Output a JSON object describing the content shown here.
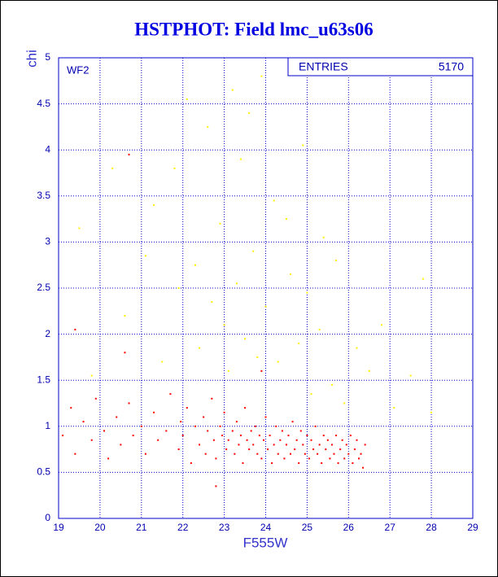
{
  "chart_data": {
    "type": "scatter",
    "title": "HSTPHOT: Field lmc_u63s06",
    "x_label": "F555W",
    "y_label": "chi",
    "annotation": "WF2",
    "stats": {
      "label": "ENTRIES",
      "value": 5170
    },
    "xlim": [
      19,
      29
    ],
    "xticks": [
      19,
      20,
      21,
      22,
      23,
      24,
      25,
      26,
      27,
      28,
      29
    ],
    "ylim": [
      0,
      5
    ],
    "yticks": [
      0,
      0.5,
      1,
      1.5,
      2,
      2.5,
      3,
      3.5,
      4,
      4.5,
      5
    ],
    "grid": true,
    "series": [
      {
        "color": "#ffee00",
        "x": [
          19.5,
          19.8,
          20.3,
          20.6,
          21.1,
          21.3,
          21.5,
          21.8,
          21.9,
          22.1,
          22.3,
          22.4,
          22.6,
          22.7,
          22.9,
          23.0,
          23.1,
          23.2,
          23.3,
          23.4,
          23.5,
          23.6,
          23.7,
          23.8,
          23.9,
          24.0,
          24.2,
          24.3,
          24.5,
          24.6,
          24.8,
          24.9,
          25.0,
          25.1,
          25.3,
          25.4,
          25.6,
          25.7,
          25.9,
          26.2,
          26.5,
          26.8,
          27.1,
          27.5,
          27.8,
          28.0
        ],
        "values": [
          3.15,
          1.55,
          3.8,
          2.2,
          2.85,
          3.4,
          1.7,
          3.8,
          2.5,
          4.55,
          2.75,
          1.85,
          4.25,
          2.35,
          3.2,
          2.1,
          1.6,
          4.65,
          2.55,
          3.9,
          1.95,
          4.4,
          2.9,
          1.75,
          4.8,
          2.3,
          3.45,
          1.7,
          3.25,
          2.65,
          1.9,
          4.05,
          2.45,
          1.35,
          2.05,
          3.05,
          1.45,
          2.8,
          1.25,
          1.85,
          1.6,
          2.1,
          1.2,
          1.55,
          2.6,
          1.15
        ]
      },
      {
        "color": "#ff0000",
        "x": [
          19.1,
          19.3,
          19.4,
          19.6,
          19.8,
          19.9,
          20.1,
          20.2,
          20.4,
          20.5,
          20.7,
          20.8,
          21.0,
          21.1,
          21.3,
          21.4,
          21.6,
          21.7,
          21.9,
          21.95,
          22.0,
          22.1,
          22.2,
          22.3,
          22.4,
          22.5,
          22.55,
          22.6,
          22.7,
          22.75,
          22.8,
          22.9,
          22.95,
          23.0,
          23.05,
          23.1,
          23.2,
          23.25,
          23.3,
          23.35,
          23.4,
          23.45,
          23.5,
          23.55,
          23.6,
          23.65,
          23.7,
          23.75,
          23.8,
          23.85,
          23.9,
          23.95,
          24.0,
          24.05,
          24.1,
          24.15,
          24.2,
          24.25,
          24.3,
          24.35,
          24.4,
          24.45,
          24.5,
          24.55,
          24.6,
          24.65,
          24.7,
          24.75,
          24.8,
          24.85,
          24.9,
          24.95,
          25.0,
          25.05,
          25.1,
          25.15,
          25.2,
          25.25,
          25.3,
          25.35,
          25.4,
          25.45,
          25.5,
          25.55,
          25.6,
          25.65,
          25.7,
          25.75,
          25.8,
          25.85,
          25.9,
          25.95,
          26.0,
          26.05,
          26.1,
          26.15,
          26.2,
          26.25,
          26.3,
          26.35,
          26.4,
          20.6,
          19.4,
          20.7,
          22.8,
          23.9
        ],
        "values": [
          0.9,
          1.2,
          0.7,
          1.05,
          0.85,
          1.3,
          0.95,
          0.65,
          1.1,
          0.8,
          1.25,
          0.9,
          1.0,
          0.7,
          1.15,
          0.85,
          0.95,
          1.35,
          0.75,
          1.05,
          0.9,
          1.2,
          0.6,
          1.0,
          0.8,
          1.1,
          0.7,
          0.95,
          1.3,
          0.85,
          0.65,
          1.0,
          0.9,
          1.15,
          0.75,
          0.85,
          0.95,
          0.7,
          1.05,
          0.8,
          0.9,
          0.6,
          1.2,
          0.85,
          0.75,
          0.95,
          0.8,
          1.0,
          0.7,
          0.9,
          0.65,
          0.85,
          1.1,
          0.75,
          0.9,
          0.6,
          0.8,
          1.0,
          0.7,
          0.85,
          0.95,
          0.65,
          0.8,
          0.9,
          0.7,
          1.05,
          0.75,
          0.85,
          0.6,
          0.95,
          0.8,
          0.7,
          0.9,
          0.65,
          0.85,
          0.75,
          1.0,
          0.7,
          0.8,
          0.6,
          0.9,
          0.75,
          0.85,
          0.65,
          0.8,
          0.7,
          0.9,
          0.6,
          0.75,
          0.85,
          0.65,
          0.8,
          0.7,
          0.9,
          0.6,
          0.75,
          0.85,
          0.65,
          0.7,
          0.55,
          0.8,
          1.8,
          2.05,
          3.95,
          0.35,
          1.6
        ]
      }
    ]
  }
}
